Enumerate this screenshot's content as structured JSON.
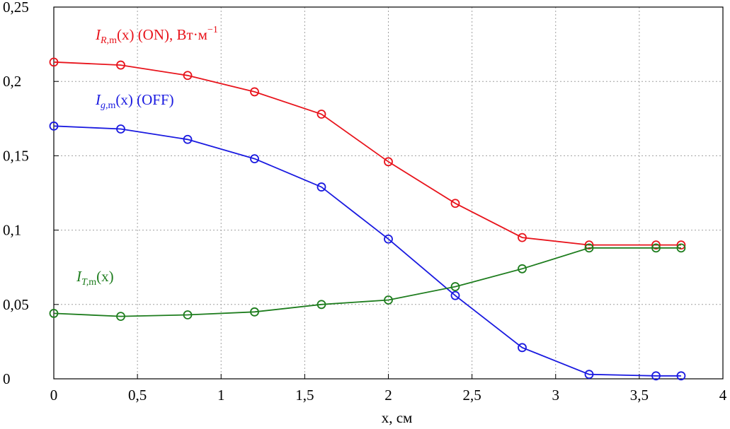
{
  "chart_data": {
    "type": "line",
    "xlabel": "x, см",
    "xlim": [
      0,
      4
    ],
    "ylim": [
      0,
      0.25
    ],
    "grid": true,
    "x_ticks": [
      {
        "value": 0,
        "label": "0"
      },
      {
        "value": 0.5,
        "label": "0,5"
      },
      {
        "value": 1,
        "label": "1"
      },
      {
        "value": 1.5,
        "label": "1,5"
      },
      {
        "value": 2,
        "label": "2"
      },
      {
        "value": 2.5,
        "label": "2,5"
      },
      {
        "value": 3,
        "label": "3"
      },
      {
        "value": 3.5,
        "label": "3,5"
      },
      {
        "value": 4,
        "label": "4"
      }
    ],
    "y_ticks": [
      {
        "value": 0,
        "label": "0"
      },
      {
        "value": 0.05,
        "label": "0,05"
      },
      {
        "value": 0.1,
        "label": "0,1"
      },
      {
        "value": 0.15,
        "label": "0,15"
      },
      {
        "value": 0.2,
        "label": "0,2"
      },
      {
        "value": 0.25,
        "label": "0,25"
      }
    ],
    "series": [
      {
        "name": "I_R,m(x) (ON), Вт·м^−1",
        "label_parts": {
          "main": "I",
          "sub": "R,",
          "sub2": "m",
          "rest": "(x) (ON), Вт·м",
          "sup": "−1"
        },
        "color": "#e8141c",
        "x": [
          0,
          0.4,
          0.8,
          1.2,
          1.6,
          2.0,
          2.4,
          2.8,
          3.2,
          3.6,
          3.75
        ],
        "y": [
          0.213,
          0.211,
          0.204,
          0.193,
          0.178,
          0.146,
          0.118,
          0.095,
          0.09,
          0.09,
          0.09
        ]
      },
      {
        "name": "I_g,m(x) (OFF)",
        "label_parts": {
          "main": "I",
          "sub": "g,",
          "sub2": "m",
          "rest": "(x) (OFF)",
          "sup": ""
        },
        "color": "#1a1ae0",
        "x": [
          0,
          0.4,
          0.8,
          1.2,
          1.6,
          2.0,
          2.4,
          2.8,
          3.2,
          3.6,
          3.75
        ],
        "y": [
          0.17,
          0.168,
          0.161,
          0.148,
          0.129,
          0.094,
          0.056,
          0.021,
          0.003,
          0.002,
          0.002
        ]
      },
      {
        "name": "I_T,m(x)",
        "label_parts": {
          "main": "I",
          "sub": "T,",
          "sub2": "m",
          "rest": "(x)",
          "sup": ""
        },
        "color": "#1e7d1e",
        "x": [
          0,
          0.4,
          0.8,
          1.2,
          1.6,
          2.0,
          2.4,
          2.8,
          3.2,
          3.6,
          3.75
        ],
        "y": [
          0.044,
          0.042,
          0.043,
          0.045,
          0.05,
          0.053,
          0.062,
          0.074,
          0.088,
          0.088,
          0.088
        ]
      }
    ]
  }
}
